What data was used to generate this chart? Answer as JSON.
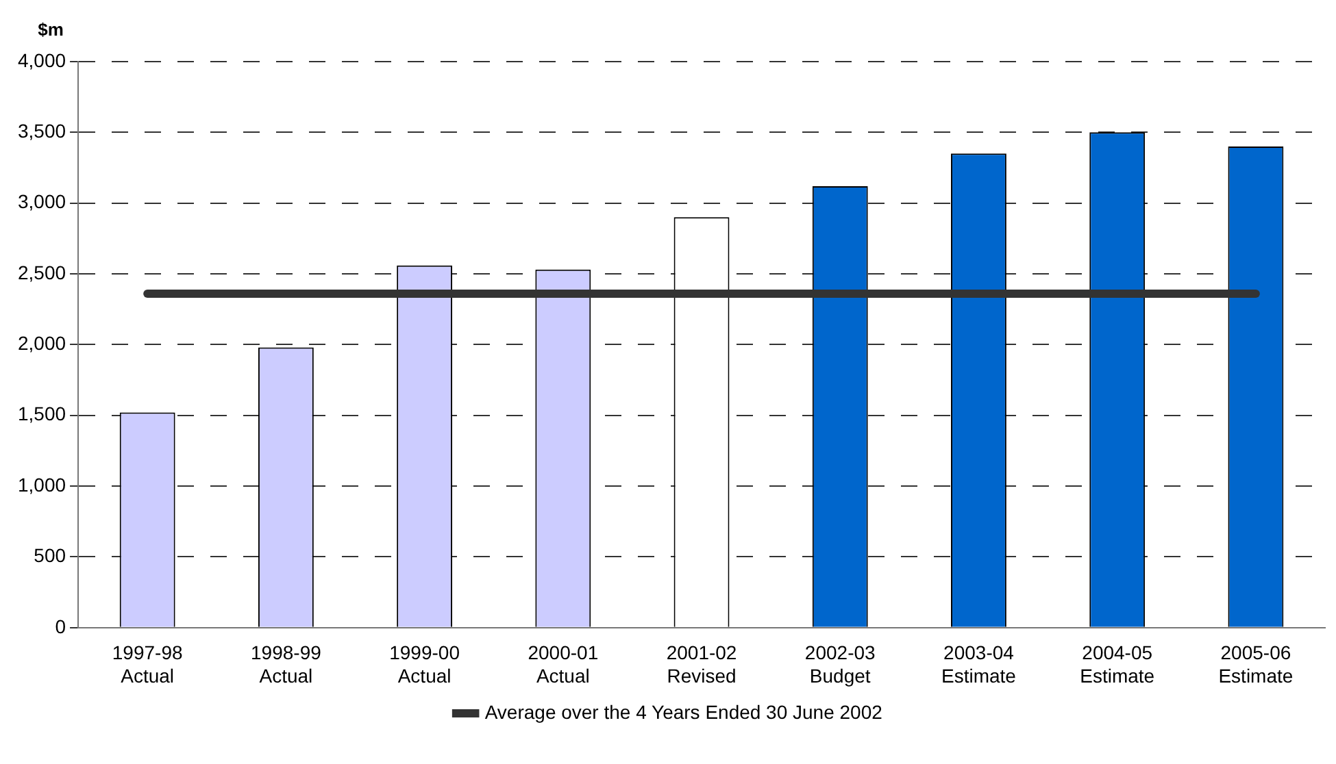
{
  "chart_data": {
    "type": "bar",
    "ylabel": "$m",
    "categories": [
      "1997-98\nActual",
      "1998-99\nActual",
      "1999-00\nActual",
      "2000-01\nActual",
      "2001-02\nRevised",
      "2002-03\nBudget",
      "2003-04\nEstimate",
      "2004-05\nEstimate",
      "2005-06\nEstimate"
    ],
    "values": [
      1520,
      1980,
      2560,
      2530,
      2900,
      3120,
      3350,
      3500,
      3400
    ],
    "colors": [
      "#ccccff",
      "#ccccff",
      "#ccccff",
      "#ccccff",
      "#ffffff",
      "#0066cc",
      "#0066cc",
      "#0066cc",
      "#0066cc"
    ],
    "series": [
      {
        "type": "line",
        "name": "Average over the 4 Years Ended 30 June 2002",
        "color": "#333333",
        "values": [
          2360,
          2360,
          2360,
          2360,
          2360,
          2360,
          2360,
          2360,
          2360
        ]
      }
    ],
    "ylim": [
      0,
      4000
    ],
    "yticks": [
      0,
      500,
      {
        "value": 1000,
        "label": "1,000"
      },
      {
        "value": 1500,
        "label": "1,500"
      },
      {
        "value": 2000,
        "label": "2,000"
      },
      {
        "value": 2500,
        "label": "2,500"
      },
      {
        "value": 3000,
        "label": "3,000"
      },
      {
        "value": 3500,
        "label": "3,500"
      },
      {
        "value": 4000,
        "label": "4,000"
      }
    ],
    "grid": "y",
    "legend": "bottom",
    "marker": "none"
  }
}
